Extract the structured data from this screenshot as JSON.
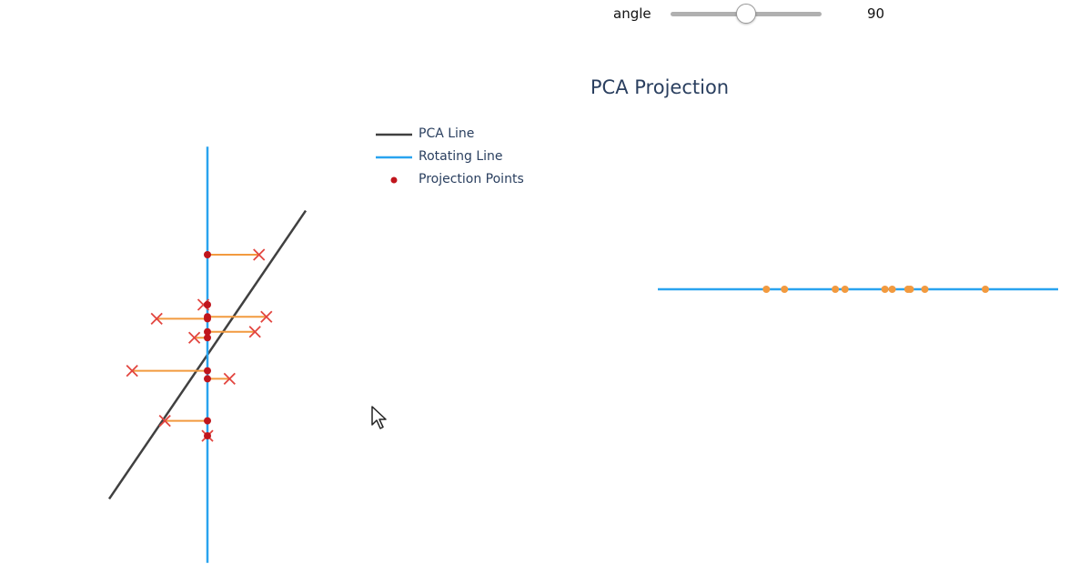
{
  "slider": {
    "label": "angle",
    "value": "90",
    "min": 0,
    "max": 180,
    "current": 90
  },
  "plot": {
    "title": "PCA Projection",
    "legend": [
      {
        "label": "PCA Line",
        "kind": "line",
        "color": "#404040"
      },
      {
        "label": "Rotating Line",
        "kind": "line",
        "color": "#29a3ef"
      },
      {
        "label": "Projection Points",
        "kind": "dot",
        "color": "#c0151c"
      }
    ]
  },
  "colors": {
    "pca_line": "#404040",
    "rotating_line": "#29a3ef",
    "projection_point": "#c0151c",
    "data_marker": "#e2453f",
    "residual": "#f29a3f",
    "projected_1d": "#f29a3f"
  },
  "chart_data": {
    "type": "scatter",
    "angle_deg": 90,
    "xlim": [
      -1.2,
      1.6
    ],
    "ylim": [
      -1.7,
      1.45
    ],
    "pca_line": {
      "slope": 1.2,
      "x_range": [
        -1.2,
        1.2
      ]
    },
    "points": [
      {
        "x": 0.63,
        "y": 1.0
      },
      {
        "x": -0.05,
        "y": 0.5
      },
      {
        "x": -0.62,
        "y": 0.36
      },
      {
        "x": 0.72,
        "y": 0.38
      },
      {
        "x": -0.16,
        "y": 0.17
      },
      {
        "x": 0.58,
        "y": 0.23
      },
      {
        "x": -0.92,
        "y": -0.16
      },
      {
        "x": 0.27,
        "y": -0.24
      },
      {
        "x": -0.52,
        "y": -0.66
      },
      {
        "x": 0.0,
        "y": -0.81
      }
    ],
    "projection_1d": [
      -0.81,
      -0.66,
      -0.24,
      -0.16,
      0.17,
      0.23,
      0.36,
      0.38,
      0.5,
      1.0
    ]
  }
}
